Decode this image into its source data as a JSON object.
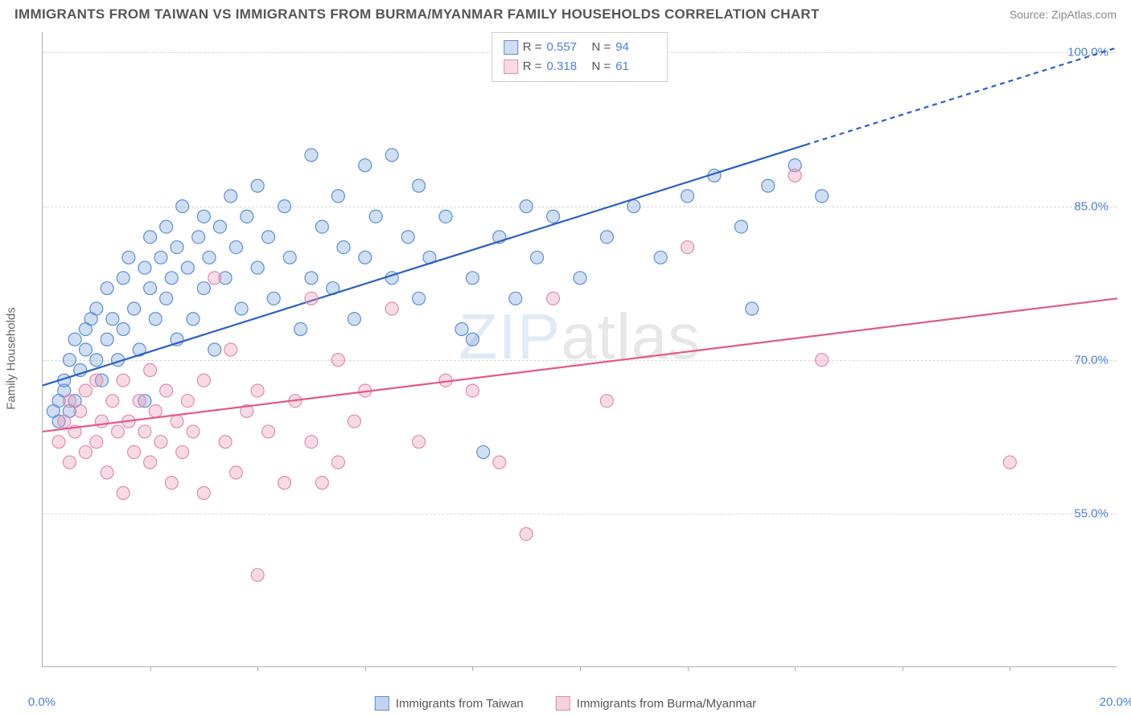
{
  "title": "IMMIGRANTS FROM TAIWAN VS IMMIGRANTS FROM BURMA/MYANMAR FAMILY HOUSEHOLDS CORRELATION CHART",
  "source": "Source: ZipAtlas.com",
  "watermark_bold": "ZIP",
  "watermark_thin": "atlas",
  "ylabel": "Family Households",
  "chart": {
    "type": "scatter",
    "xlim": [
      0,
      20
    ],
    "ylim": [
      40,
      102
    ],
    "xtick_labels": [
      "0.0%",
      "20.0%"
    ],
    "xtick_positions": [
      0,
      20
    ],
    "xtick_minor": [
      2,
      4,
      6,
      8,
      10,
      12,
      14,
      16,
      18
    ],
    "ytick_labels": [
      "55.0%",
      "70.0%",
      "85.0%",
      "100.0%"
    ],
    "ytick_positions": [
      55,
      70,
      85,
      100
    ],
    "grid_color": "#d8d8d8",
    "axis_color": "#b0b0b0",
    "background": "#ffffff",
    "marker_radius": 8,
    "marker_opacity": 0.55,
    "line_width": 2.2
  },
  "series": [
    {
      "name": "Immigrants from Taiwan",
      "color_fill": "rgba(120,160,220,0.35)",
      "color_stroke": "#5b8fd6",
      "line_color": "#2b5fc4",
      "R": "0.557",
      "N": "94",
      "trend": {
        "x1": 0,
        "y1": 67.5,
        "x2": 14.2,
        "y2": 91.0,
        "dash_x2": 20,
        "dash_y2": 100.5
      },
      "points": [
        [
          0.2,
          65
        ],
        [
          0.3,
          66
        ],
        [
          0.3,
          64
        ],
        [
          0.4,
          67
        ],
        [
          0.4,
          68
        ],
        [
          0.5,
          70
        ],
        [
          0.5,
          65
        ],
        [
          0.6,
          72
        ],
        [
          0.6,
          66
        ],
        [
          0.7,
          69
        ],
        [
          0.8,
          71
        ],
        [
          0.8,
          73
        ],
        [
          0.9,
          74
        ],
        [
          1.0,
          70
        ],
        [
          1.0,
          75
        ],
        [
          1.1,
          68
        ],
        [
          1.2,
          72
        ],
        [
          1.2,
          77
        ],
        [
          1.3,
          74
        ],
        [
          1.4,
          70
        ],
        [
          1.5,
          78
        ],
        [
          1.5,
          73
        ],
        [
          1.6,
          80
        ],
        [
          1.7,
          75
        ],
        [
          1.8,
          71
        ],
        [
          1.9,
          79
        ],
        [
          1.9,
          66
        ],
        [
          2.0,
          82
        ],
        [
          2.0,
          77
        ],
        [
          2.1,
          74
        ],
        [
          2.2,
          80
        ],
        [
          2.3,
          76
        ],
        [
          2.3,
          83
        ],
        [
          2.4,
          78
        ],
        [
          2.5,
          72
        ],
        [
          2.5,
          81
        ],
        [
          2.6,
          85
        ],
        [
          2.7,
          79
        ],
        [
          2.8,
          74
        ],
        [
          2.9,
          82
        ],
        [
          3.0,
          77
        ],
        [
          3.0,
          84
        ],
        [
          3.1,
          80
        ],
        [
          3.2,
          71
        ],
        [
          3.3,
          83
        ],
        [
          3.4,
          78
        ],
        [
          3.5,
          86
        ],
        [
          3.6,
          81
        ],
        [
          3.7,
          75
        ],
        [
          3.8,
          84
        ],
        [
          4.0,
          79
        ],
        [
          4.0,
          87
        ],
        [
          4.2,
          82
        ],
        [
          4.3,
          76
        ],
        [
          4.5,
          85
        ],
        [
          4.6,
          80
        ],
        [
          4.8,
          73
        ],
        [
          5.0,
          78
        ],
        [
          5.0,
          90
        ],
        [
          5.2,
          83
        ],
        [
          5.4,
          77
        ],
        [
          5.5,
          86
        ],
        [
          5.6,
          81
        ],
        [
          5.8,
          74
        ],
        [
          6.0,
          89
        ],
        [
          6.0,
          80
        ],
        [
          6.2,
          84
        ],
        [
          6.5,
          78
        ],
        [
          6.5,
          90
        ],
        [
          6.8,
          82
        ],
        [
          7.0,
          76
        ],
        [
          7.0,
          87
        ],
        [
          7.2,
          80
        ],
        [
          7.5,
          84
        ],
        [
          7.8,
          73
        ],
        [
          8.0,
          78
        ],
        [
          8.0,
          72
        ],
        [
          8.2,
          61
        ],
        [
          8.5,
          82
        ],
        [
          8.8,
          76
        ],
        [
          9.0,
          85
        ],
        [
          9.2,
          80
        ],
        [
          9.5,
          84
        ],
        [
          10.0,
          78
        ],
        [
          10.5,
          82
        ],
        [
          11.0,
          85
        ],
        [
          11.5,
          80
        ],
        [
          12.0,
          86
        ],
        [
          12.5,
          88
        ],
        [
          13.0,
          83
        ],
        [
          13.2,
          75
        ],
        [
          13.5,
          87
        ],
        [
          14.0,
          89
        ],
        [
          14.5,
          86
        ]
      ]
    },
    {
      "name": "Immigrants from Burma/Myanmar",
      "color_fill": "rgba(235,150,180,0.35)",
      "color_stroke": "#e08bb0",
      "line_color": "#e05a8c",
      "R": "0.318",
      "N": "61",
      "trend": {
        "x1": 0,
        "y1": 63.0,
        "x2": 20,
        "y2": 76.0
      },
      "points": [
        [
          0.3,
          62
        ],
        [
          0.4,
          64
        ],
        [
          0.5,
          60
        ],
        [
          0.5,
          66
        ],
        [
          0.6,
          63
        ],
        [
          0.7,
          65
        ],
        [
          0.8,
          61
        ],
        [
          0.8,
          67
        ],
        [
          1.0,
          68
        ],
        [
          1.0,
          62
        ],
        [
          1.1,
          64
        ],
        [
          1.2,
          59
        ],
        [
          1.3,
          66
        ],
        [
          1.4,
          63
        ],
        [
          1.5,
          68
        ],
        [
          1.5,
          57
        ],
        [
          1.6,
          64
        ],
        [
          1.7,
          61
        ],
        [
          1.8,
          66
        ],
        [
          1.9,
          63
        ],
        [
          2.0,
          69
        ],
        [
          2.0,
          60
        ],
        [
          2.1,
          65
        ],
        [
          2.2,
          62
        ],
        [
          2.3,
          67
        ],
        [
          2.4,
          58
        ],
        [
          2.5,
          64
        ],
        [
          2.6,
          61
        ],
        [
          2.7,
          66
        ],
        [
          2.8,
          63
        ],
        [
          3.0,
          68
        ],
        [
          3.0,
          57
        ],
        [
          3.2,
          78
        ],
        [
          3.4,
          62
        ],
        [
          3.5,
          71
        ],
        [
          3.6,
          59
        ],
        [
          3.8,
          65
        ],
        [
          4.0,
          67
        ],
        [
          4.0,
          49
        ],
        [
          4.2,
          63
        ],
        [
          4.5,
          58
        ],
        [
          4.7,
          66
        ],
        [
          5.0,
          76
        ],
        [
          5.0,
          62
        ],
        [
          5.2,
          58
        ],
        [
          5.5,
          60
        ],
        [
          5.5,
          70
        ],
        [
          5.8,
          64
        ],
        [
          6.0,
          67
        ],
        [
          6.5,
          75
        ],
        [
          7.0,
          62
        ],
        [
          7.5,
          68
        ],
        [
          8.0,
          67
        ],
        [
          8.5,
          60
        ],
        [
          9.0,
          53
        ],
        [
          9.5,
          76
        ],
        [
          10.5,
          66
        ],
        [
          12.0,
          81
        ],
        [
          14.0,
          88
        ],
        [
          14.5,
          70
        ],
        [
          18.0,
          60
        ]
      ]
    }
  ],
  "legend_bottom": [
    {
      "label": "Immigrants from Taiwan",
      "swatch_fill": "rgba(120,160,220,0.45)",
      "swatch_stroke": "#5b8fd6"
    },
    {
      "label": "Immigrants from Burma/Myanmar",
      "swatch_fill": "rgba(235,150,180,0.45)",
      "swatch_stroke": "#e08bb0"
    }
  ]
}
